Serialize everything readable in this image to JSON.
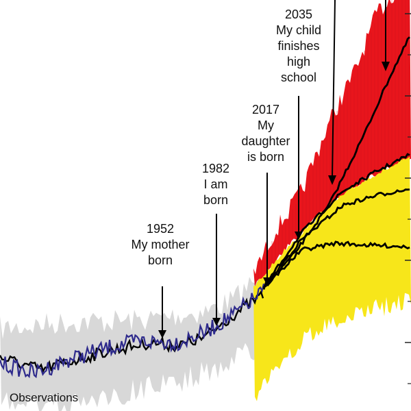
{
  "chart_data": {
    "type": "line",
    "title": "",
    "xlabel": "",
    "ylabel": "",
    "x_range": [
      1850,
      2100
    ],
    "colors": {
      "observations_line": "#2e2a8c",
      "model_mean_line": "#000000",
      "historical_band": "#d8d8d8",
      "high_scenario_band": "#e8151c",
      "low_scenario_band": "#f7e61a",
      "arrows": "#000000"
    },
    "series_label": "Observations",
    "annotations": [
      {
        "year": "1952",
        "lines": [
          "My mother",
          "born"
        ]
      },
      {
        "year": "1982",
        "lines": [
          "I am",
          "born"
        ]
      },
      {
        "year": "2017",
        "lines": [
          "My",
          "daughter",
          "is born"
        ]
      },
      {
        "year": "2035",
        "lines": [
          "My child",
          "finishes",
          "high",
          "school"
        ]
      }
    ]
  }
}
